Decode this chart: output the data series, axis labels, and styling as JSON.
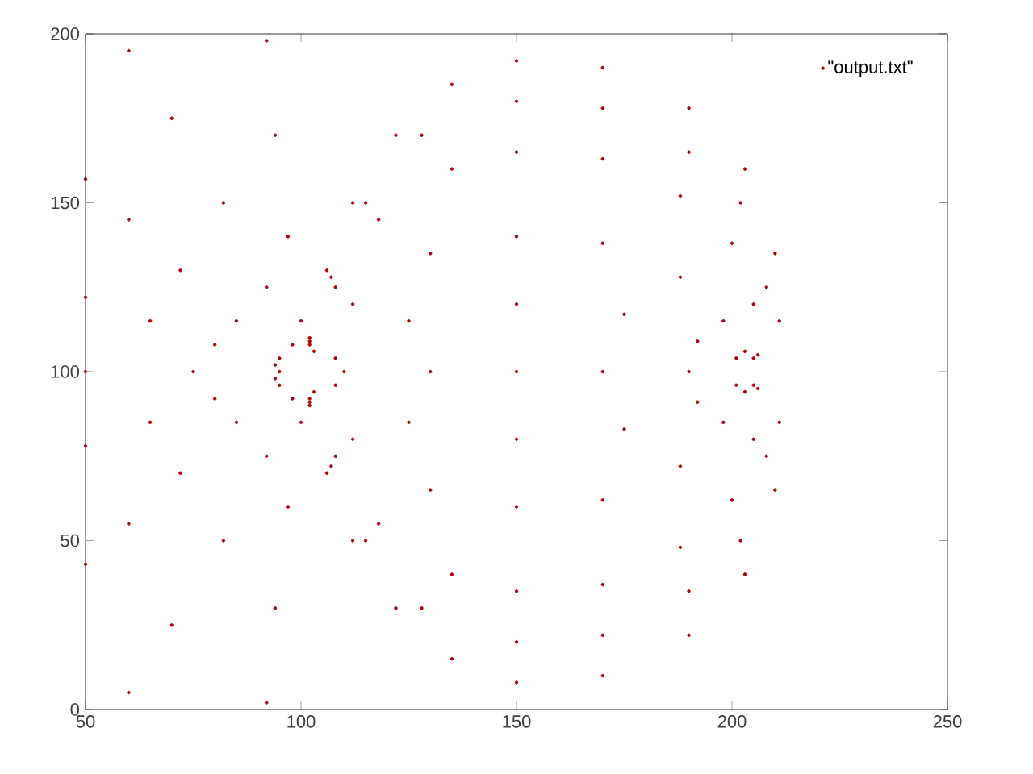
{
  "chart_data": {
    "type": "scatter",
    "xlim": [
      50,
      250
    ],
    "ylim": [
      0,
      200
    ],
    "xticks": [
      50,
      100,
      150,
      200,
      250
    ],
    "yticks": [
      0,
      50,
      100,
      150,
      200
    ],
    "legend": "top right",
    "series": [
      {
        "name": "\"output.txt\"",
        "color": "#b00000",
        "x": [
          102,
          106,
          112,
          122,
          135,
          150,
          170,
          190,
          203,
          210,
          211,
          205,
          102,
          107,
          115,
          128,
          150,
          170,
          190,
          202,
          208,
          206,
          102,
          108,
          118,
          135,
          150,
          170,
          188,
          200,
          205,
          203,
          103,
          112,
          130,
          150,
          170,
          188,
          198,
          201,
          108,
          125,
          150,
          175,
          192,
          98,
          92,
          82,
          70,
          60,
          95,
          85,
          72,
          60,
          50,
          94,
          80,
          65,
          50,
          100,
          97,
          94,
          92,
          50,
          75,
          95,
          110,
          130,
          150,
          170,
          190,
          102,
          106,
          112,
          122,
          135,
          150,
          170,
          190,
          203,
          210,
          211,
          205,
          102,
          107,
          115,
          128,
          150,
          170,
          190,
          202,
          208,
          206,
          102,
          108,
          118,
          135,
          150,
          170,
          188,
          200,
          205,
          203,
          103,
          112,
          130,
          150,
          170,
          188,
          198,
          201,
          108,
          125,
          150,
          175,
          192,
          98,
          92,
          82,
          70,
          60,
          95,
          85,
          72,
          60,
          50,
          94,
          80,
          65,
          50,
          100,
          97,
          94,
          92
        ],
        "values": [
          110,
          130,
          150,
          170,
          185,
          192,
          190,
          178,
          160,
          135,
          115,
          104,
          109,
          128,
          150,
          170,
          180,
          178,
          165,
          150,
          125,
          105,
          108,
          125,
          145,
          160,
          165,
          163,
          152,
          138,
          120,
          106,
          106,
          120,
          135,
          140,
          138,
          128,
          115,
          104,
          104,
          115,
          120,
          117,
          109,
          108,
          125,
          150,
          175,
          195,
          104,
          115,
          130,
          145,
          157,
          102,
          108,
          115,
          122,
          115,
          140,
          170,
          198,
          100,
          100,
          100,
          100,
          100,
          100,
          100,
          100,
          90,
          70,
          50,
          30,
          15,
          8,
          10,
          22,
          40,
          65,
          85,
          96,
          91,
          72,
          50,
          30,
          20,
          22,
          35,
          50,
          75,
          95,
          92,
          75,
          55,
          40,
          35,
          37,
          48,
          62,
          80,
          94,
          94,
          80,
          65,
          60,
          62,
          72,
          85,
          96,
          96,
          85,
          80,
          83,
          91,
          92,
          75,
          50,
          25,
          5,
          96,
          85,
          70,
          55,
          43,
          98,
          92,
          85,
          78,
          85,
          60,
          30,
          2
        ]
      }
    ]
  }
}
